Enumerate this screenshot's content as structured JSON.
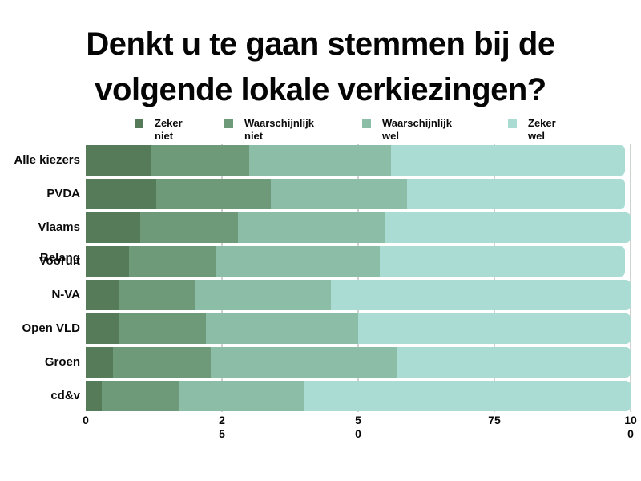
{
  "title": {
    "line1": "Denkt u te gaan stemmen bij de",
    "line2": "volgende lokale verkiezingen?"
  },
  "legend": {
    "items": [
      {
        "name": "zeker-niet",
        "lines": [
          "Zeker",
          "niet"
        ],
        "color": "#567b58"
      },
      {
        "name": "waarschijnlijk-niet",
        "lines": [
          "Waarschijnlijk",
          "niet"
        ],
        "color": "#6f9a7a"
      },
      {
        "name": "waarschijnlijk-wel",
        "lines": [
          "Waarschijnlijk",
          "wel"
        ],
        "color": "#8cbda6"
      },
      {
        "name": "zeker-wel",
        "lines": [
          "Zeker",
          "wel"
        ],
        "color": "#aadcd3"
      }
    ]
  },
  "chart_data": {
    "type": "bar",
    "stacked": true,
    "orientation": "horizontal",
    "unit": "percent",
    "title": "Denkt u te gaan stemmen bij de volgende lokale verkiezingen?",
    "categories": [
      "Alle kiezers",
      "PVDA",
      "Vlaams Belang",
      "Vooruit",
      "N-VA",
      "Open VLD",
      "Groen",
      "cd&v"
    ],
    "series": [
      {
        "name": "Zeker niet",
        "color": "#567b58",
        "values": [
          12,
          13,
          10,
          8,
          6,
          6,
          5,
          3
        ]
      },
      {
        "name": "Waarschijnlijk niet",
        "color": "#6f9a7a",
        "values": [
          18,
          21,
          18,
          16,
          14,
          16,
          18,
          14
        ]
      },
      {
        "name": "Waarschijnlijk wel",
        "color": "#8cbda6",
        "values": [
          26,
          25,
          27,
          30,
          25,
          28,
          34,
          23
        ]
      },
      {
        "name": "Zeker wel",
        "color": "#aadcd3",
        "values": [
          43,
          40,
          45,
          45,
          55,
          50,
          43,
          60
        ]
      }
    ],
    "xlim": [
      0,
      100
    ],
    "xticks": [
      {
        "value": 0,
        "lines": [
          "0"
        ]
      },
      {
        "value": 25,
        "lines": [
          "2",
          "5"
        ]
      },
      {
        "value": 50,
        "lines": [
          "5",
          "0"
        ]
      },
      {
        "value": 75,
        "lines": [
          "75"
        ]
      },
      {
        "value": 100,
        "lines": [
          "10",
          "0"
        ]
      }
    ],
    "gridlines": [
      25,
      50,
      75,
      100
    ],
    "grid_color": "#ccd3d0",
    "legend_position": "top",
    "background_color": "#ffffff",
    "text_color": "#050505"
  }
}
